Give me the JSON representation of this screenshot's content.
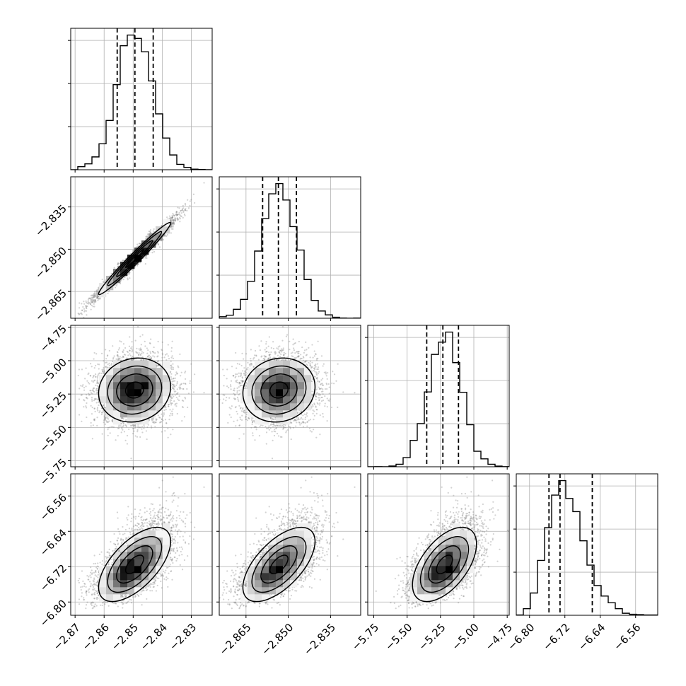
{
  "chart_data": {
    "type": "corner",
    "title": "",
    "grid": true,
    "variables": [
      {
        "ticks": [
          -2.87,
          -2.86,
          -2.85,
          -2.84,
          -2.83
        ],
        "tick_labels": [
          "−2.87",
          "−2.86",
          "−2.85",
          "−2.84",
          "−2.83"
        ],
        "range": [
          -2.8715,
          -2.8228
        ],
        "mean": -2.8495,
        "sd": 0.0062,
        "quantiles": [
          -2.8555,
          -2.8494,
          -2.8431
        ]
      },
      {
        "ticks": [
          -2.865,
          -2.85,
          -2.835
        ],
        "tick_labels": [
          "−2.865",
          "−2.850",
          "−2.835"
        ],
        "range": [
          -2.8745,
          -2.8243
        ],
        "mean": -2.8533,
        "sd": 0.0064,
        "quantiles": [
          -2.8591,
          -2.8535,
          -2.8471
        ]
      },
      {
        "ticks": [
          -5.75,
          -5.5,
          -5.25,
          -5.0,
          -4.75
        ],
        "tick_labels": [
          "−5.75",
          "−5.50",
          "−5.25",
          "−5.00",
          "−4.75"
        ],
        "range": [
          -5.795,
          -4.735
        ],
        "mean": -5.22,
        "sd": 0.12,
        "quantiles": [
          -5.353,
          -5.232,
          -5.115
        ]
      },
      {
        "ticks": [
          -6.8,
          -6.72,
          -6.64,
          -6.56
        ],
        "tick_labels": [
          "−6.80",
          "−6.72",
          "−6.64",
          "−6.56"
        ],
        "range": [
          -6.83,
          -6.51
        ],
        "mean": -6.715,
        "sd": 0.042,
        "quantiles": [
          -6.756,
          -6.731,
          -6.658
        ]
      }
    ],
    "correlations": [
      [
        1.0,
        0.98,
        0.1,
        0.62
      ],
      [
        0.98,
        1.0,
        0.1,
        0.62
      ],
      [
        0.1,
        0.1,
        1.0,
        0.55
      ],
      [
        0.62,
        0.62,
        0.55,
        1.0
      ]
    ],
    "histogram_bins": 20,
    "contour_levels_sigma": [
      0.5,
      1.0,
      1.5,
      2.0
    ],
    "colors": {
      "line": "#000000",
      "grid": "#b0b0b0",
      "points": "#7f7f7f"
    }
  }
}
